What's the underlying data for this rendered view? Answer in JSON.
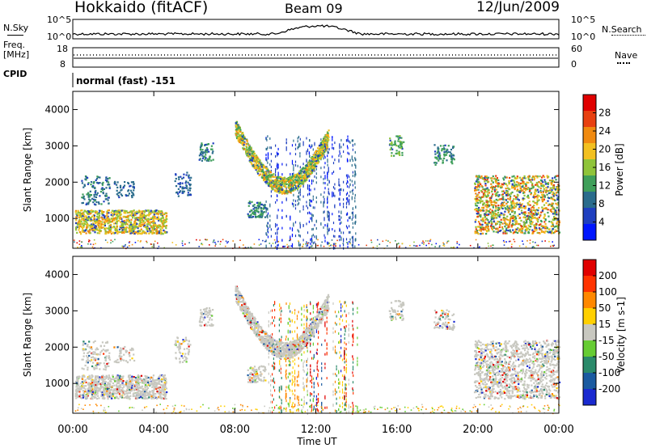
{
  "header": {
    "station": "Hokkaido (fitACF)",
    "beam": "Beam 09",
    "date": "12/Jun/2009"
  },
  "strips": {
    "nsky_label": "N.Sky",
    "nsky_tick_top": "10^5",
    "nsky_tick_bottom": "10^0",
    "nsearch_label": "N.Search",
    "nsearch_tick_top": "10^5",
    "nsearch_tick_bottom": "10^0",
    "freq_label_line1": "Freq.",
    "freq_label_line2": "[MHz]",
    "freq_tick_top": "18",
    "freq_tick_bottom": "8",
    "nave_label": "Nave",
    "nave_tick_top": "60",
    "nave_tick_bottom": "0",
    "cpid_label": "CPID",
    "cpid_value": "normal (fast) -151"
  },
  "chart_data": [
    {
      "type": "heatmap",
      "name": "Power",
      "ylabel": "Slant Range [km]",
      "xlabel": "",
      "x_range_hours": [
        0,
        24
      ],
      "ylim": [
        180,
        4500
      ],
      "y_ticks": [
        "1000",
        "2000",
        "3000",
        "4000"
      ],
      "colorbar": {
        "label": "Power [dB]",
        "ticks": [
          "4",
          "8",
          "12",
          "16",
          "20",
          "24",
          "28"
        ],
        "colors": [
          "#0016ff",
          "#1f3fbf",
          "#2a6c8c",
          "#3f9f5a",
          "#8fc43a",
          "#f2c020",
          "#f08a10",
          "#e84010",
          "#e00000"
        ]
      }
    },
    {
      "type": "heatmap",
      "name": "Velocity",
      "ylabel": "Slant Range [km]",
      "xlabel": "Time UT",
      "x_range_hours": [
        0,
        24
      ],
      "ylim": [
        180,
        4500
      ],
      "y_ticks": [
        "1000",
        "2000",
        "3000",
        "4000"
      ],
      "x_ticks": [
        "00:00",
        "04:00",
        "08:00",
        "12:00",
        "16:00",
        "20:00",
        "00:00"
      ],
      "colorbar": {
        "label": "Velocity [m s-1]",
        "ticks": [
          "200",
          "100",
          "50",
          "15",
          "-15",
          "-50",
          "-100",
          "-200"
        ],
        "colors": [
          "#1a2ad0",
          "#1a5aa0",
          "#2a8a6a",
          "#66cc33",
          "#c8c8c0",
          "#ffd000",
          "#ff8800",
          "#ff3300",
          "#e00000"
        ]
      }
    }
  ]
}
